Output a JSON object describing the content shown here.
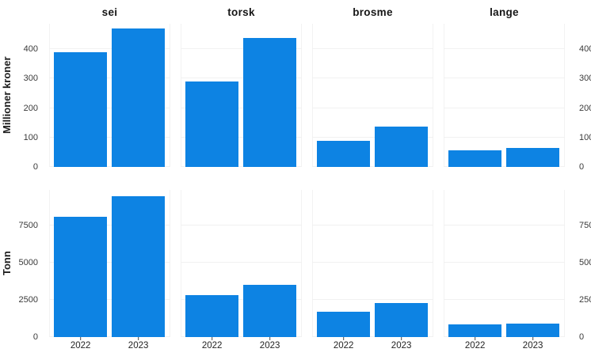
{
  "chart_data": {
    "type": "bar",
    "title": "",
    "facets": [
      "sei",
      "torsk",
      "brosme",
      "lange"
    ],
    "categories": [
      "2022",
      "2023"
    ],
    "bar_color": "#0d83e3",
    "gridline_color": "#f1f1f1",
    "grid": true,
    "legend_position": "none",
    "rows": [
      {
        "ylabel": "Millioner kroner",
        "yticks": [
          0,
          100,
          200,
          300,
          400
        ],
        "ylim": [
          0,
          486
        ],
        "series": [
          {
            "name": "sei",
            "values": [
              390,
              471
            ]
          },
          {
            "name": "torsk",
            "values": [
              290,
              437
            ]
          },
          {
            "name": "brosme",
            "values": [
              89,
              138
            ]
          },
          {
            "name": "lange",
            "values": [
              56,
              64
            ]
          }
        ]
      },
      {
        "ylabel": "Tonn",
        "yticks": [
          0,
          2500,
          5000,
          7500
        ],
        "ylim": [
          0,
          9890
        ],
        "series": [
          {
            "name": "sei",
            "values": [
              8080,
              9450
            ]
          },
          {
            "name": "torsk",
            "values": [
              2820,
              3500
            ]
          },
          {
            "name": "brosme",
            "values": [
              1700,
              2280
            ]
          },
          {
            "name": "lange",
            "values": [
              850,
              900
            ]
          }
        ]
      }
    ]
  }
}
